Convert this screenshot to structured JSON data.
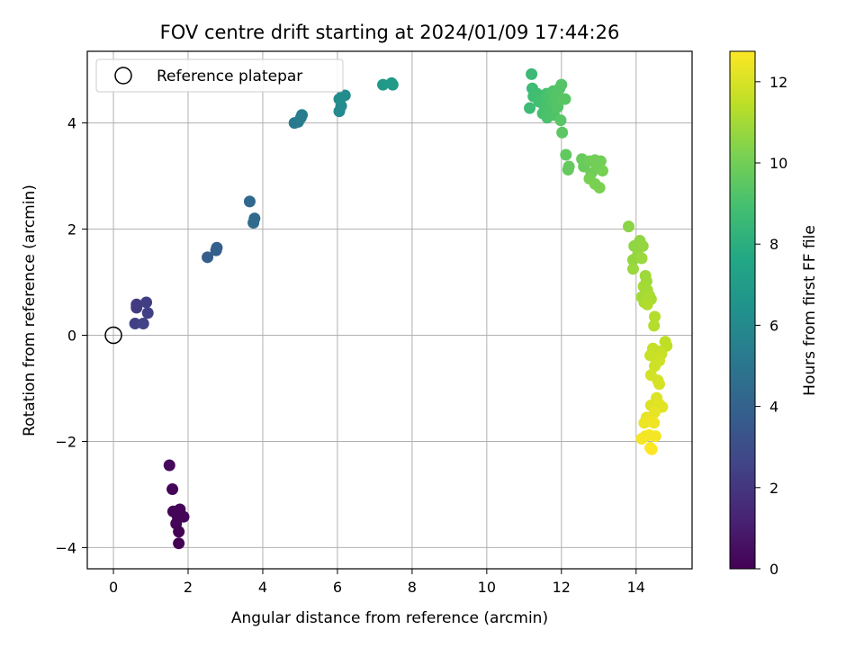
{
  "chart_data": {
    "type": "scatter",
    "title": "FOV centre drift starting at 2024/01/09 17:44:26",
    "xlabel": "Angular distance from reference (arcmin)",
    "ylabel": "Rotation from reference (arcmin)",
    "xlim": [
      -0.7,
      15.5
    ],
    "ylim": [
      -4.4,
      5.35
    ],
    "x_ticks": [
      0,
      2,
      4,
      6,
      8,
      10,
      12,
      14
    ],
    "y_ticks": [
      -4,
      -2,
      0,
      2,
      4
    ],
    "grid": true,
    "legend": {
      "placement": "top-left",
      "entries": [
        "Reference platepar"
      ]
    },
    "reference_point": {
      "x": 0,
      "y": 0,
      "marker": "hollow-circle"
    },
    "colorbar": {
      "label": "Hours from first FF file",
      "range": [
        0,
        12.75
      ],
      "ticks": [
        0,
        2,
        4,
        6,
        8,
        10,
        12
      ],
      "colormap": "viridis"
    },
    "points": [
      {
        "x": 1.5,
        "y": -2.45,
        "c": 0.3
      },
      {
        "x": 1.58,
        "y": -2.9,
        "c": 0.2
      },
      {
        "x": 1.6,
        "y": -3.32,
        "c": 0.2
      },
      {
        "x": 1.78,
        "y": -3.28,
        "c": 0.2
      },
      {
        "x": 1.72,
        "y": -3.42,
        "c": 0.1
      },
      {
        "x": 1.88,
        "y": -3.42,
        "c": 0.15
      },
      {
        "x": 1.68,
        "y": -3.55,
        "c": 0.1
      },
      {
        "x": 1.75,
        "y": -3.7,
        "c": 0.05
      },
      {
        "x": 1.75,
        "y": -3.92,
        "c": 0.0
      },
      {
        "x": 0.62,
        "y": 0.58,
        "c": 2.2
      },
      {
        "x": 0.62,
        "y": 0.52,
        "c": 2.2
      },
      {
        "x": 0.88,
        "y": 0.62,
        "c": 2.3
      },
      {
        "x": 0.92,
        "y": 0.42,
        "c": 2.4
      },
      {
        "x": 0.58,
        "y": 0.22,
        "c": 2.4
      },
      {
        "x": 0.8,
        "y": 0.22,
        "c": 2.5
      },
      {
        "x": 2.52,
        "y": 1.47,
        "c": 3.8
      },
      {
        "x": 2.75,
        "y": 1.6,
        "c": 3.9
      },
      {
        "x": 2.77,
        "y": 1.65,
        "c": 3.9
      },
      {
        "x": 3.65,
        "y": 2.52,
        "c": 4.3
      },
      {
        "x": 3.78,
        "y": 2.2,
        "c": 4.4
      },
      {
        "x": 3.75,
        "y": 2.12,
        "c": 4.4
      },
      {
        "x": 4.85,
        "y": 4.0,
        "c": 5.2
      },
      {
        "x": 4.95,
        "y": 4.02,
        "c": 5.2
      },
      {
        "x": 5.02,
        "y": 4.1,
        "c": 5.3
      },
      {
        "x": 5.05,
        "y": 4.15,
        "c": 5.3
      },
      {
        "x": 6.05,
        "y": 4.22,
        "c": 6.0
      },
      {
        "x": 6.1,
        "y": 4.32,
        "c": 6.0
      },
      {
        "x": 6.05,
        "y": 4.45,
        "c": 6.1
      },
      {
        "x": 6.2,
        "y": 4.52,
        "c": 6.1
      },
      {
        "x": 6.1,
        "y": 4.48,
        "c": 6.2
      },
      {
        "x": 7.22,
        "y": 4.72,
        "c": 6.8
      },
      {
        "x": 7.45,
        "y": 4.75,
        "c": 6.9
      },
      {
        "x": 7.48,
        "y": 4.72,
        "c": 6.9
      },
      {
        "x": 11.2,
        "y": 4.92,
        "c": 8.6
      },
      {
        "x": 11.15,
        "y": 4.28,
        "c": 8.7
      },
      {
        "x": 11.22,
        "y": 4.65,
        "c": 8.7
      },
      {
        "x": 11.25,
        "y": 4.5,
        "c": 8.8
      },
      {
        "x": 11.35,
        "y": 4.55,
        "c": 8.8
      },
      {
        "x": 11.4,
        "y": 4.4,
        "c": 8.9
      },
      {
        "x": 11.48,
        "y": 4.45,
        "c": 8.9
      },
      {
        "x": 11.5,
        "y": 4.18,
        "c": 9.0
      },
      {
        "x": 11.55,
        "y": 4.3,
        "c": 9.0
      },
      {
        "x": 11.6,
        "y": 4.55,
        "c": 9.0
      },
      {
        "x": 11.62,
        "y": 4.1,
        "c": 9.1
      },
      {
        "x": 11.65,
        "y": 4.48,
        "c": 9.1
      },
      {
        "x": 11.7,
        "y": 4.25,
        "c": 9.1
      },
      {
        "x": 11.75,
        "y": 4.38,
        "c": 9.2
      },
      {
        "x": 11.78,
        "y": 4.6,
        "c": 9.2
      },
      {
        "x": 11.8,
        "y": 4.15,
        "c": 9.2
      },
      {
        "x": 11.85,
        "y": 4.5,
        "c": 9.3
      },
      {
        "x": 11.9,
        "y": 4.3,
        "c": 9.3
      },
      {
        "x": 11.95,
        "y": 4.65,
        "c": 9.3
      },
      {
        "x": 12.0,
        "y": 4.72,
        "c": 9.3
      },
      {
        "x": 12.05,
        "y": 4.45,
        "c": 9.4
      },
      {
        "x": 12.1,
        "y": 4.45,
        "c": 9.4
      },
      {
        "x": 11.98,
        "y": 4.05,
        "c": 9.4
      },
      {
        "x": 12.02,
        "y": 3.82,
        "c": 9.5
      },
      {
        "x": 12.12,
        "y": 3.4,
        "c": 9.6
      },
      {
        "x": 12.2,
        "y": 3.18,
        "c": 9.7
      },
      {
        "x": 12.18,
        "y": 3.12,
        "c": 9.7
      },
      {
        "x": 12.55,
        "y": 3.32,
        "c": 9.8
      },
      {
        "x": 12.6,
        "y": 3.18,
        "c": 9.8
      },
      {
        "x": 12.75,
        "y": 3.28,
        "c": 9.9
      },
      {
        "x": 12.8,
        "y": 3.05,
        "c": 9.9
      },
      {
        "x": 12.9,
        "y": 3.3,
        "c": 10.0
      },
      {
        "x": 12.95,
        "y": 3.15,
        "c": 10.0
      },
      {
        "x": 13.05,
        "y": 3.28,
        "c": 10.0
      },
      {
        "x": 13.1,
        "y": 3.1,
        "c": 10.1
      },
      {
        "x": 12.75,
        "y": 2.95,
        "c": 10.1
      },
      {
        "x": 12.9,
        "y": 2.85,
        "c": 10.2
      },
      {
        "x": 13.02,
        "y": 2.78,
        "c": 10.2
      },
      {
        "x": 13.8,
        "y": 2.05,
        "c": 10.5
      },
      {
        "x": 14.1,
        "y": 1.78,
        "c": 10.6
      },
      {
        "x": 13.95,
        "y": 1.68,
        "c": 10.6
      },
      {
        "x": 14.05,
        "y": 1.52,
        "c": 10.7
      },
      {
        "x": 14.18,
        "y": 1.68,
        "c": 10.7
      },
      {
        "x": 13.92,
        "y": 1.42,
        "c": 10.7
      },
      {
        "x": 14.15,
        "y": 1.45,
        "c": 10.8
      },
      {
        "x": 13.92,
        "y": 1.25,
        "c": 10.8
      },
      {
        "x": 14.25,
        "y": 1.12,
        "c": 10.9
      },
      {
        "x": 14.28,
        "y": 1.02,
        "c": 10.9
      },
      {
        "x": 14.2,
        "y": 0.92,
        "c": 11.0
      },
      {
        "x": 14.3,
        "y": 0.85,
        "c": 11.0
      },
      {
        "x": 14.15,
        "y": 0.72,
        "c": 11.0
      },
      {
        "x": 14.35,
        "y": 0.75,
        "c": 11.1
      },
      {
        "x": 14.22,
        "y": 0.62,
        "c": 11.1
      },
      {
        "x": 14.4,
        "y": 0.68,
        "c": 11.1
      },
      {
        "x": 14.3,
        "y": 0.58,
        "c": 11.2
      },
      {
        "x": 14.5,
        "y": 0.35,
        "c": 11.3
      },
      {
        "x": 14.48,
        "y": 0.18,
        "c": 11.3
      },
      {
        "x": 14.78,
        "y": -0.12,
        "c": 11.5
      },
      {
        "x": 14.82,
        "y": -0.2,
        "c": 11.5
      },
      {
        "x": 14.45,
        "y": -0.25,
        "c": 11.6
      },
      {
        "x": 14.6,
        "y": -0.3,
        "c": 11.6
      },
      {
        "x": 14.38,
        "y": -0.38,
        "c": 11.7
      },
      {
        "x": 14.52,
        "y": -0.42,
        "c": 11.7
      },
      {
        "x": 14.68,
        "y": -0.35,
        "c": 11.7
      },
      {
        "x": 14.62,
        "y": -0.48,
        "c": 11.8
      },
      {
        "x": 14.5,
        "y": -0.58,
        "c": 11.8
      },
      {
        "x": 14.4,
        "y": -0.75,
        "c": 11.9
      },
      {
        "x": 14.58,
        "y": -0.85,
        "c": 11.9
      },
      {
        "x": 14.62,
        "y": -0.92,
        "c": 12.0
      },
      {
        "x": 14.55,
        "y": -1.18,
        "c": 12.1
      },
      {
        "x": 14.4,
        "y": -1.32,
        "c": 12.1
      },
      {
        "x": 14.62,
        "y": -1.3,
        "c": 12.2
      },
      {
        "x": 14.7,
        "y": -1.35,
        "c": 12.2
      },
      {
        "x": 14.5,
        "y": -1.45,
        "c": 12.3
      },
      {
        "x": 14.28,
        "y": -1.55,
        "c": 12.3
      },
      {
        "x": 14.22,
        "y": -1.65,
        "c": 12.4
      },
      {
        "x": 14.35,
        "y": -1.62,
        "c": 12.4
      },
      {
        "x": 14.48,
        "y": -1.65,
        "c": 12.5
      },
      {
        "x": 14.25,
        "y": -1.9,
        "c": 12.5
      },
      {
        "x": 14.35,
        "y": -1.88,
        "c": 12.6
      },
      {
        "x": 14.15,
        "y": -1.95,
        "c": 12.6
      },
      {
        "x": 14.52,
        "y": -1.9,
        "c": 12.6
      },
      {
        "x": 14.38,
        "y": -2.12,
        "c": 12.7
      },
      {
        "x": 14.42,
        "y": -2.15,
        "c": 12.75
      }
    ]
  }
}
